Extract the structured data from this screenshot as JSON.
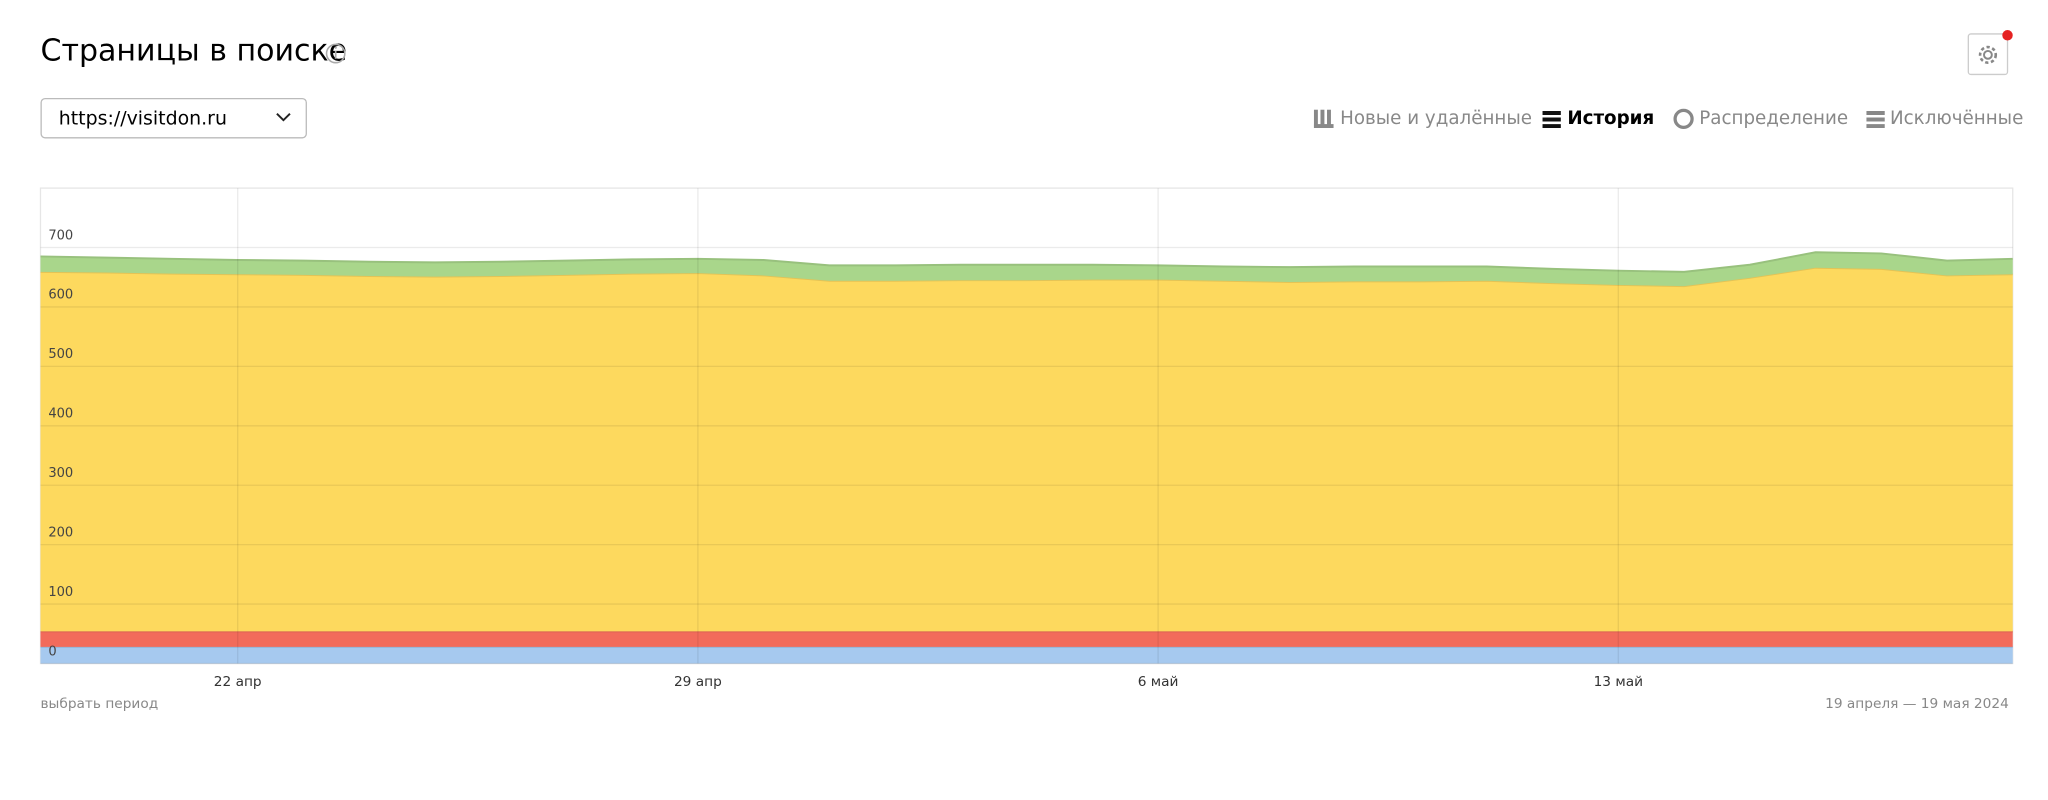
{
  "header": {
    "title": "Страницы в поиске"
  },
  "site_select": {
    "value": "https://visitdon.ru"
  },
  "tabs": [
    "Новые и удалённые",
    "История",
    "Распределение",
    "Исключённые"
  ],
  "footer": {
    "period_link": "выбрать период",
    "date_range": "19 апреля — 19 мая 2024"
  },
  "chart_data": {
    "type": "area",
    "stacked": true,
    "categories": [
      null,
      null,
      null,
      "22 апр",
      null,
      null,
      null,
      null,
      null,
      null,
      "29 апр",
      null,
      null,
      null,
      null,
      null,
      null,
      "6 май",
      null,
      null,
      null,
      null,
      null,
      null,
      "13 май",
      null,
      null,
      null,
      null,
      null,
      null
    ],
    "series": [
      {
        "color": "#a6c9ef",
        "values": [
          28,
          28,
          28,
          28,
          28,
          28,
          28,
          28,
          28,
          28,
          28,
          28,
          28,
          28,
          28,
          28,
          28,
          28,
          28,
          28,
          28,
          28,
          28,
          28,
          28,
          28,
          28,
          28,
          28,
          28,
          28
        ]
      },
      {
        "color": "#f26b5b",
        "values": [
          26,
          26,
          26,
          26,
          26,
          26,
          26,
          26,
          26,
          26,
          26,
          26,
          26,
          26,
          26,
          26,
          26,
          26,
          26,
          26,
          26,
          26,
          26,
          26,
          26,
          26,
          26,
          26,
          26,
          26,
          26
        ]
      },
      {
        "color": "#fdd95e",
        "values": [
          605,
          604,
          602,
          601,
          600,
          598,
          597,
          598,
          600,
          602,
          603,
          599,
          590,
          590,
          591,
          591,
          592,
          592,
          590,
          588,
          589,
          589,
          590,
          586,
          583,
          581,
          595,
          612,
          610,
          599,
          601
        ]
      },
      {
        "color": "#a9d68b",
        "values": [
          26,
          25,
          25,
          24,
          24,
          24,
          24,
          24,
          24,
          24,
          24,
          26,
          26,
          26,
          26,
          26,
          25,
          24,
          24,
          25,
          25,
          25,
          24,
          24,
          24,
          24,
          22,
          26,
          26,
          25,
          26
        ]
      }
    ],
    "ylim": [
      0,
      800
    ],
    "yticks": [
      0,
      100,
      200,
      300,
      400,
      500,
      600,
      700
    ],
    "grid": true
  }
}
